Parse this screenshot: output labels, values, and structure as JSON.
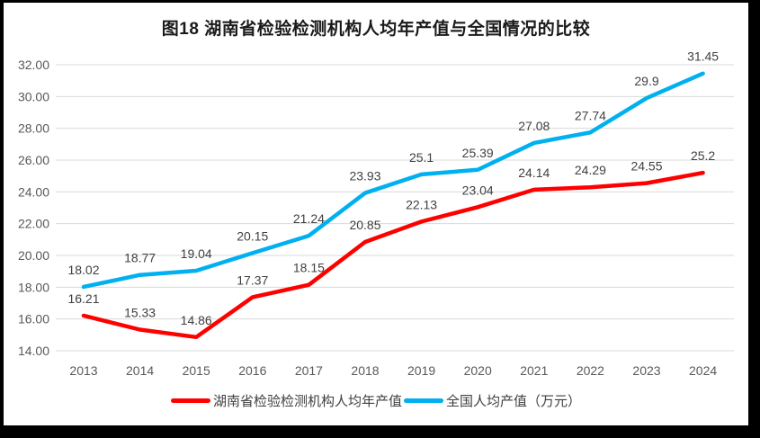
{
  "chart_data": {
    "type": "line",
    "title": "图18 湖南省检验检测机构人均年产值与全国情况的比较",
    "categories": [
      "2013",
      "2014",
      "2015",
      "2016",
      "2017",
      "2018",
      "2019",
      "2020",
      "2021",
      "2022",
      "2023",
      "2024"
    ],
    "series": [
      {
        "name": "湖南省检验检测机构人均年产值",
        "color": "#FF0000",
        "values": [
          16.21,
          15.33,
          14.86,
          17.37,
          18.15,
          20.85,
          22.13,
          23.04,
          24.14,
          24.29,
          24.55,
          25.2
        ]
      },
      {
        "name": "全国人均产值（万元）",
        "color": "#00B0F0",
        "values": [
          18.02,
          18.77,
          19.04,
          20.15,
          21.24,
          23.93,
          25.1,
          25.39,
          27.08,
          27.74,
          29.9,
          31.45
        ]
      }
    ],
    "yticks": [
      "14.00",
      "16.00",
      "18.00",
      "20.00",
      "22.00",
      "24.00",
      "26.00",
      "28.00",
      "30.00",
      "32.00"
    ],
    "ylim": [
      14,
      32
    ],
    "ytick_step": 2,
    "grid": "horizontal",
    "gridline_color": "#D9D9D9",
    "axis_label_color": "#595959",
    "data_label_color": "#404040",
    "data_labels": "shown above each point",
    "legend_position": "bottom",
    "xlabel": "",
    "ylabel": ""
  }
}
